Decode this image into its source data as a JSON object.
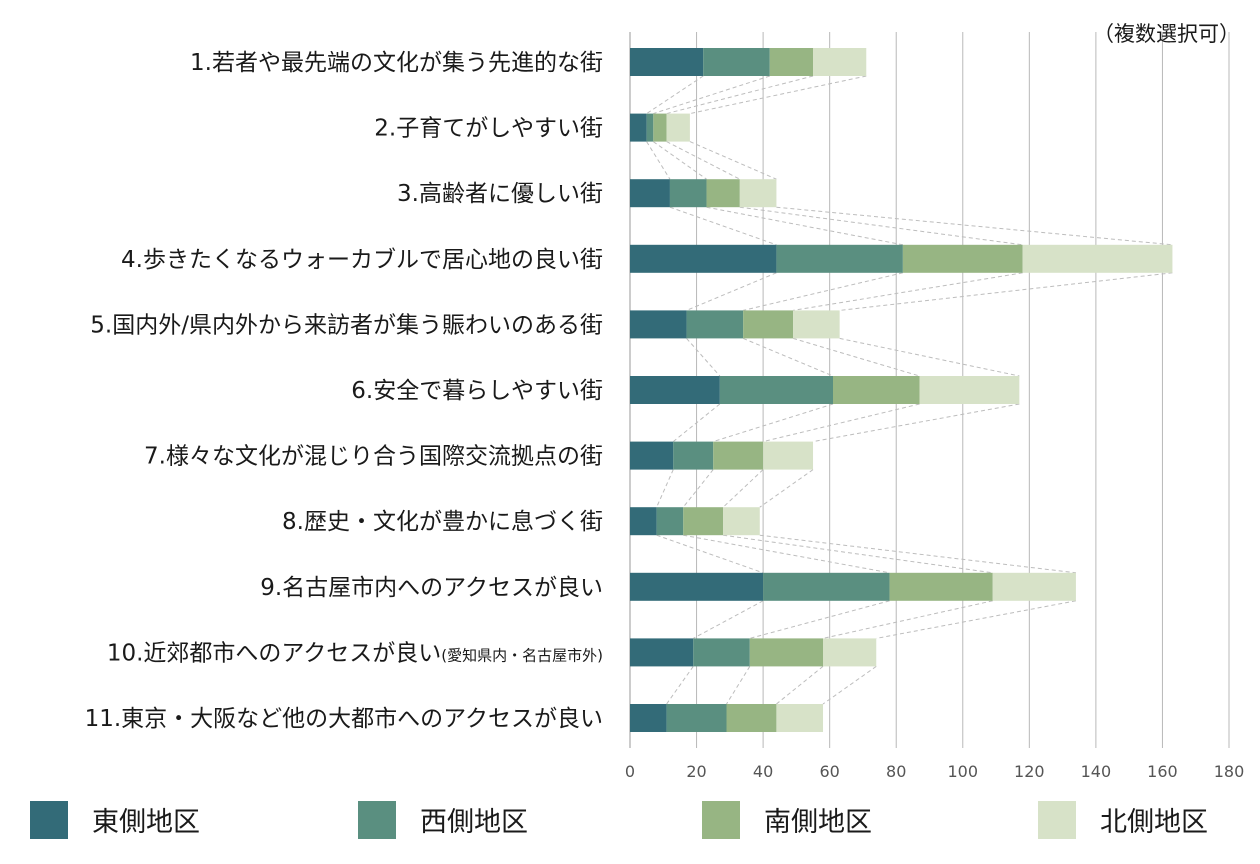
{
  "chart_data": {
    "type": "bar",
    "orientation": "horizontal",
    "stacked": true,
    "note": "（複数選択可）",
    "categories": [
      "1.若者や最先端の文化が集う先進的な街",
      "2.子育てがしやすい街",
      "3.高齢者に優しい街",
      "4.歩きたくなるウォーカブルで居心地の良い街",
      "5.国内外/県内外から来訪者が集う賑わいのある街",
      "6.安全で暮らしやすい街",
      "7.様々な文化が混じり合う国際交流拠点の街",
      "8.歴史・文化が豊かに息づく街",
      "9.名古屋市内へのアクセスが良い",
      "10.近郊都市へのアクセスが良い",
      "11.東京・大阪など他の大都市へのアクセスが良い"
    ],
    "category_suffix": {
      "9": "(愛知県内・名古屋市外)"
    },
    "series": [
      {
        "name": "東側地区",
        "color": "#336b78",
        "values": [
          22,
          5,
          12,
          44,
          17,
          27,
          13,
          8,
          40,
          19,
          11
        ]
      },
      {
        "name": "西側地区",
        "color": "#5a8f80",
        "values": [
          20,
          2,
          11,
          38,
          17,
          34,
          12,
          8,
          38,
          17,
          18
        ]
      },
      {
        "name": "南側地区",
        "color": "#97b583",
        "values": [
          13,
          4,
          10,
          36,
          15,
          26,
          15,
          12,
          31,
          22,
          15
        ]
      },
      {
        "name": "北側地区",
        "color": "#d7e2c8",
        "values": [
          16,
          7,
          11,
          45,
          14,
          30,
          15,
          11,
          25,
          16,
          14
        ]
      }
    ],
    "xlim": [
      0,
      180
    ],
    "xticks": [
      0,
      20,
      40,
      60,
      80,
      100,
      120,
      140,
      160,
      180
    ],
    "grid": "vertical",
    "connector_lines": true,
    "legend_position": "bottom"
  }
}
